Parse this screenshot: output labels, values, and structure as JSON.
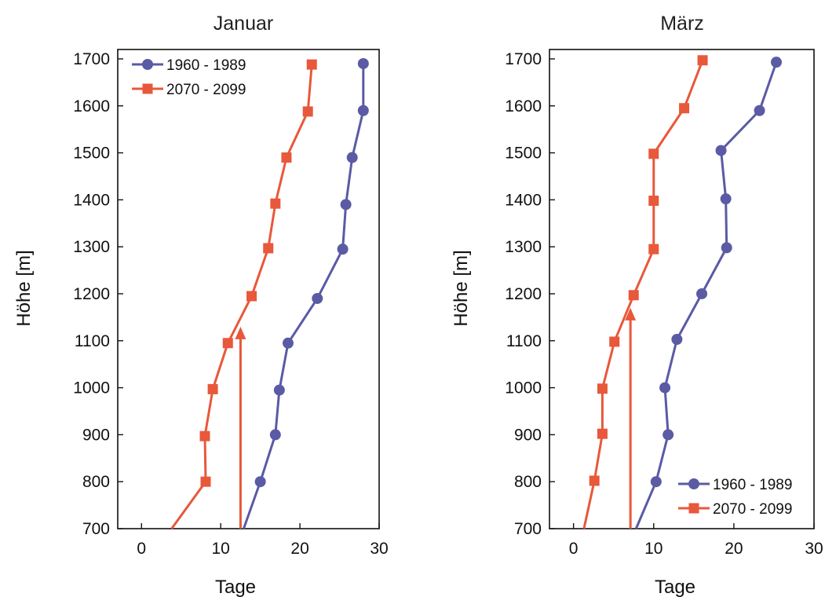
{
  "colors": {
    "series_1960": "#5a5aa5",
    "series_2070": "#e8583a",
    "axis": "#111111",
    "background": "#ffffff"
  },
  "chart_data": [
    {
      "type": "line",
      "title": "Januar",
      "xlabel": "Tage",
      "ylabel": "Höhe [m]",
      "xlim": [
        -3,
        30
      ],
      "ylim": [
        700,
        1720
      ],
      "x_ticks": [
        0,
        10,
        20,
        30
      ],
      "y_ticks": [
        700,
        800,
        900,
        1000,
        1100,
        1200,
        1300,
        1400,
        1500,
        1600,
        1700
      ],
      "legend_position": "top-left",
      "series": [
        {
          "name": "1960 - 1989",
          "marker": "circle",
          "color": "#5a5aa5",
          "points": [
            {
              "x": 28.0,
              "y": 1690
            },
            {
              "x": 28.0,
              "y": 1590
            },
            {
              "x": 26.6,
              "y": 1490
            },
            {
              "x": 25.8,
              "y": 1390
            },
            {
              "x": 25.4,
              "y": 1295
            },
            {
              "x": 22.2,
              "y": 1190
            },
            {
              "x": 18.5,
              "y": 1095
            },
            {
              "x": 17.4,
              "y": 995
            },
            {
              "x": 16.9,
              "y": 900
            },
            {
              "x": 15.0,
              "y": 800
            }
          ],
          "line_extends_to": {
            "x": 12.9,
            "y": 700
          }
        },
        {
          "name": "2070 - 2099",
          "marker": "square",
          "color": "#e8583a",
          "points": [
            {
              "x": 21.5,
              "y": 1688
            },
            {
              "x": 21.0,
              "y": 1588
            },
            {
              "x": 18.3,
              "y": 1490
            },
            {
              "x": 16.9,
              "y": 1392
            },
            {
              "x": 16.0,
              "y": 1297
            },
            {
              "x": 13.9,
              "y": 1195
            },
            {
              "x": 10.9,
              "y": 1095
            },
            {
              "x": 9.0,
              "y": 997
            },
            {
              "x": 8.0,
              "y": 897
            },
            {
              "x": 8.1,
              "y": 800
            }
          ],
          "line_extends_to": {
            "x": 3.8,
            "y": 700
          }
        }
      ],
      "annotations": [
        {
          "type": "arrow",
          "color": "#e8583a",
          "from": {
            "x": 12.5,
            "y": 700
          },
          "to": {
            "x": 12.5,
            "y": 1130
          }
        }
      ]
    },
    {
      "type": "line",
      "title": "März",
      "xlabel": "Tage",
      "ylabel": "Höhe [m]",
      "xlim": [
        -3,
        30
      ],
      "ylim": [
        700,
        1720
      ],
      "x_ticks": [
        0,
        10,
        20,
        30
      ],
      "y_ticks": [
        700,
        800,
        900,
        1000,
        1100,
        1200,
        1300,
        1400,
        1500,
        1600,
        1700
      ],
      "legend_position": "bottom-right",
      "series": [
        {
          "name": "1960 - 1989",
          "marker": "circle",
          "color": "#5a5aa5",
          "points": [
            {
              "x": 25.3,
              "y": 1693
            },
            {
              "x": 23.2,
              "y": 1590
            },
            {
              "x": 18.4,
              "y": 1505
            },
            {
              "x": 19.0,
              "y": 1402
            },
            {
              "x": 19.1,
              "y": 1298
            },
            {
              "x": 16.0,
              "y": 1200
            },
            {
              "x": 12.9,
              "y": 1103
            },
            {
              "x": 11.4,
              "y": 1000
            },
            {
              "x": 11.8,
              "y": 900
            },
            {
              "x": 10.3,
              "y": 800
            }
          ],
          "line_extends_to": {
            "x": 7.8,
            "y": 700
          }
        },
        {
          "name": "2070 - 2099",
          "marker": "square",
          "color": "#e8583a",
          "points": [
            {
              "x": 16.1,
              "y": 1697
            },
            {
              "x": 13.8,
              "y": 1595
            },
            {
              "x": 10.0,
              "y": 1498
            },
            {
              "x": 10.0,
              "y": 1398
            },
            {
              "x": 10.0,
              "y": 1295
            },
            {
              "x": 7.5,
              "y": 1197
            },
            {
              "x": 5.1,
              "y": 1098
            },
            {
              "x": 3.6,
              "y": 998
            },
            {
              "x": 3.6,
              "y": 902
            },
            {
              "x": 2.6,
              "y": 802
            }
          ],
          "line_extends_to": {
            "x": 1.3,
            "y": 700
          }
        }
      ],
      "annotations": [
        {
          "type": "arrow",
          "color": "#e8583a",
          "from": {
            "x": 7.1,
            "y": 700
          },
          "to": {
            "x": 7.1,
            "y": 1170
          }
        }
      ]
    }
  ]
}
